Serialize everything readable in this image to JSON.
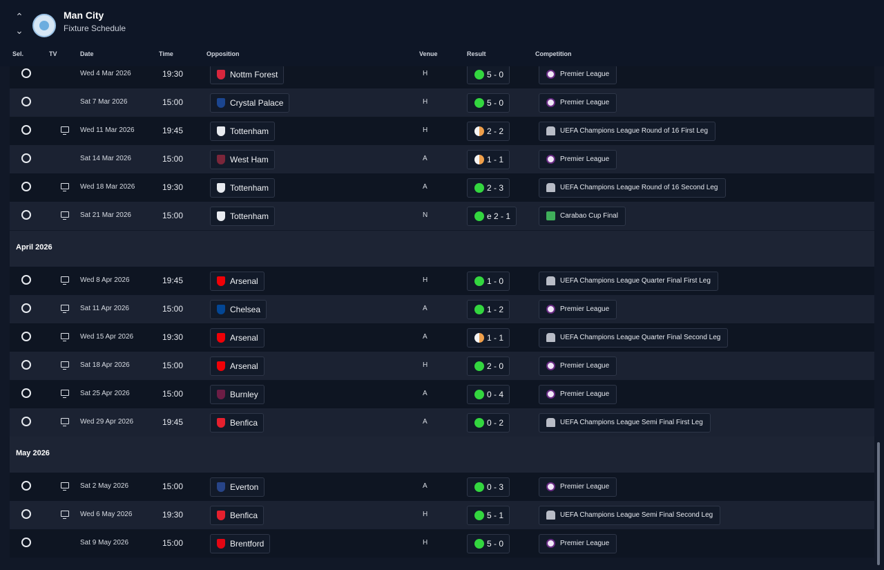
{
  "header": {
    "club_name": "Man City",
    "subtitle": "Fixture Schedule"
  },
  "columns": {
    "sel": "Sel.",
    "tv": "TV",
    "date": "Date",
    "time": "Time",
    "opposition": "Opposition",
    "venue": "Venue",
    "result": "Result",
    "competition": "Competition"
  },
  "colors": {
    "win": "#33d63f",
    "draw": "#f0a04b",
    "background": "#111827"
  },
  "fixtures_march": [
    {
      "tv": false,
      "date": "Wed 4 Mar 2026",
      "time": "19:30",
      "opp": "Nottm Forest",
      "venue": "H",
      "result": "5 - 0",
      "outcome": "win",
      "comp": "Premier League",
      "comp_icon": "premier-league-icon"
    },
    {
      "tv": false,
      "date": "Sat 7 Mar 2026",
      "time": "15:00",
      "opp": "Crystal Palace",
      "venue": "H",
      "result": "5 - 0",
      "outcome": "win",
      "comp": "Premier League",
      "comp_icon": "premier-league-icon"
    },
    {
      "tv": true,
      "date": "Wed 11 Mar 2026",
      "time": "19:45",
      "opp": "Tottenham",
      "venue": "H",
      "result": "2 - 2",
      "outcome": "draw",
      "comp": "UEFA Champions League Round of 16  First Leg",
      "comp_icon": "champions-league-icon"
    },
    {
      "tv": false,
      "date": "Sat 14 Mar 2026",
      "time": "15:00",
      "opp": "West Ham",
      "venue": "A",
      "result": "1 - 1",
      "outcome": "draw",
      "comp": "Premier League",
      "comp_icon": "premier-league-icon"
    },
    {
      "tv": true,
      "date": "Wed 18 Mar 2026",
      "time": "19:30",
      "opp": "Tottenham",
      "venue": "A",
      "result": "2 - 3",
      "outcome": "win",
      "comp": "UEFA Champions League Round of 16  Second Leg",
      "comp_icon": "champions-league-icon"
    },
    {
      "tv": true,
      "date": "Sat 21 Mar 2026",
      "time": "15:00",
      "opp": "Tottenham",
      "venue": "N",
      "result": "e 2 - 1",
      "outcome": "win",
      "comp": "Carabao Cup Final",
      "comp_icon": "carabao-cup-icon"
    }
  ],
  "month_april": "April 2026",
  "fixtures_april": [
    {
      "tv": true,
      "date": "Wed 8 Apr 2026",
      "time": "19:45",
      "opp": "Arsenal",
      "venue": "H",
      "result": "1 - 0",
      "outcome": "win",
      "comp": "UEFA Champions League Quarter Final First Leg",
      "comp_icon": "champions-league-icon"
    },
    {
      "tv": true,
      "date": "Sat 11 Apr 2026",
      "time": "15:00",
      "opp": "Chelsea",
      "venue": "A",
      "result": "1 - 2",
      "outcome": "win",
      "comp": "Premier League",
      "comp_icon": "premier-league-icon"
    },
    {
      "tv": true,
      "date": "Wed 15 Apr 2026",
      "time": "19:30",
      "opp": "Arsenal",
      "venue": "A",
      "result": "1 - 1",
      "outcome": "draw",
      "comp": "UEFA Champions League Quarter Final Second Leg",
      "comp_icon": "champions-league-icon"
    },
    {
      "tv": true,
      "date": "Sat 18 Apr 2026",
      "time": "15:00",
      "opp": "Arsenal",
      "venue": "H",
      "result": "2 - 0",
      "outcome": "win",
      "comp": "Premier League",
      "comp_icon": "premier-league-icon"
    },
    {
      "tv": true,
      "date": "Sat 25 Apr 2026",
      "time": "15:00",
      "opp": "Burnley",
      "venue": "A",
      "result": "0 - 4",
      "outcome": "win",
      "comp": "Premier League",
      "comp_icon": "premier-league-icon"
    },
    {
      "tv": true,
      "date": "Wed 29 Apr 2026",
      "time": "19:45",
      "opp": "Benfica",
      "venue": "A",
      "result": "0 - 2",
      "outcome": "win",
      "comp": "UEFA Champions League Semi Final First Leg",
      "comp_icon": "champions-league-icon"
    }
  ],
  "month_may": "May 2026",
  "fixtures_may": [
    {
      "tv": true,
      "date": "Sat 2 May 2026",
      "time": "15:00",
      "opp": "Everton",
      "venue": "A",
      "result": "0 - 3",
      "outcome": "win",
      "comp": "Premier League",
      "comp_icon": "premier-league-icon"
    },
    {
      "tv": true,
      "date": "Wed 6 May 2026",
      "time": "19:30",
      "opp": "Benfica",
      "venue": "H",
      "result": "5 - 1",
      "outcome": "win",
      "comp": "UEFA Champions League Semi Final Second Leg",
      "comp_icon": "champions-league-icon"
    },
    {
      "tv": false,
      "date": "Sat 9 May 2026",
      "time": "15:00",
      "opp": "Brentford",
      "venue": "H",
      "result": "5 - 0",
      "outcome": "win",
      "comp": "Premier League",
      "comp_icon": "premier-league-icon"
    }
  ]
}
